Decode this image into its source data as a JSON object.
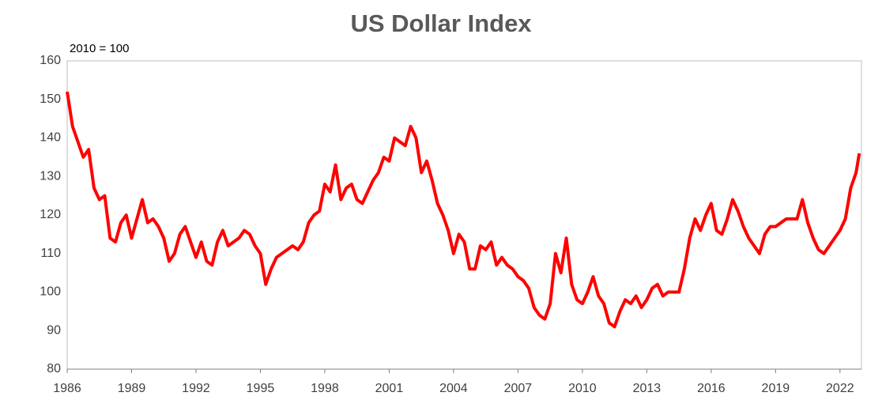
{
  "chart_data": {
    "type": "line",
    "title": "US Dollar Index",
    "subtitle": "2010 = 100",
    "x": [
      1986,
      1986.25,
      1986.5,
      1986.75,
      1987,
      1987.25,
      1987.5,
      1987.75,
      1988,
      1988.25,
      1988.5,
      1988.75,
      1989,
      1989.25,
      1989.5,
      1989.75,
      1990,
      1990.25,
      1990.5,
      1990.75,
      1991,
      1991.25,
      1991.5,
      1991.75,
      1992,
      1992.25,
      1992.5,
      1992.75,
      1993,
      1993.25,
      1993.5,
      1993.75,
      1994,
      1994.25,
      1994.5,
      1994.75,
      1995,
      1995.25,
      1995.5,
      1995.75,
      1996,
      1996.25,
      1996.5,
      1996.75,
      1997,
      1997.25,
      1997.5,
      1997.75,
      1998,
      1998.25,
      1998.5,
      1998.75,
      1999,
      1999.25,
      1999.5,
      1999.75,
      2000,
      2000.25,
      2000.5,
      2000.75,
      2001,
      2001.25,
      2001.5,
      2001.75,
      2002,
      2002.25,
      2002.5,
      2002.75,
      2003,
      2003.25,
      2003.5,
      2003.75,
      2004,
      2004.25,
      2004.5,
      2004.75,
      2005,
      2005.25,
      2005.5,
      2005.75,
      2006,
      2006.25,
      2006.5,
      2006.75,
      2007,
      2007.25,
      2007.5,
      2007.75,
      2008,
      2008.25,
      2008.5,
      2008.75,
      2009,
      2009.25,
      2009.5,
      2009.75,
      2010,
      2010.25,
      2010.5,
      2010.75,
      2011,
      2011.25,
      2011.5,
      2011.75,
      2012,
      2012.25,
      2012.5,
      2012.75,
      2013,
      2013.25,
      2013.5,
      2013.75,
      2014,
      2014.25,
      2014.5,
      2014.75,
      2015,
      2015.25,
      2015.5,
      2015.75,
      2016,
      2016.25,
      2016.5,
      2016.75,
      2017,
      2017.25,
      2017.5,
      2017.75,
      2018,
      2018.25,
      2018.5,
      2018.75,
      2019,
      2019.25,
      2019.5,
      2019.75,
      2020,
      2020.25,
      2020.5,
      2020.75,
      2021,
      2021.25,
      2021.5,
      2021.75,
      2022,
      2022.25,
      2022.5,
      2022.75,
      2022.9
    ],
    "values": [
      152,
      143,
      139,
      135,
      137,
      127,
      124,
      125,
      114,
      113,
      118,
      120,
      114,
      119,
      124,
      118,
      119,
      117,
      114,
      108,
      110,
      115,
      117,
      113,
      109,
      113,
      108,
      107,
      113,
      116,
      112,
      113,
      114,
      116,
      115,
      112,
      110,
      102,
      106,
      109,
      110,
      111,
      112,
      111,
      113,
      118,
      120,
      121,
      128,
      126,
      133,
      124,
      127,
      128,
      124,
      123,
      126,
      129,
      131,
      135,
      134,
      140,
      139,
      138,
      143,
      140,
      131,
      134,
      129,
      123,
      120,
      116,
      110,
      115,
      113,
      106,
      106,
      112,
      111,
      113,
      107,
      109,
      107,
      106,
      104,
      103,
      101,
      96,
      94,
      93,
      97,
      110,
      105,
      114,
      102,
      98,
      97,
      100,
      104,
      99,
      97,
      92,
      91,
      95,
      98,
      97,
      99,
      96,
      98,
      101,
      102,
      99,
      100,
      100,
      100,
      106,
      114,
      119,
      116,
      120,
      123,
      116,
      115,
      119,
      124,
      121,
      117,
      114,
      112,
      110,
      115,
      117,
      117,
      118,
      119,
      119,
      119,
      124,
      118,
      114,
      111,
      110,
      112,
      114,
      116,
      119,
      127,
      131,
      136
    ],
    "color": "#ff0000",
    "xlim": [
      1986,
      2023
    ],
    "xticks": [
      1986,
      1989,
      1992,
      1995,
      1998,
      2001,
      2004,
      2007,
      2010,
      2013,
      2016,
      2019,
      2022
    ],
    "ylim": [
      80,
      160
    ],
    "yticks": [
      80,
      90,
      100,
      110,
      120,
      130,
      140,
      150,
      160
    ],
    "grid": false
  }
}
